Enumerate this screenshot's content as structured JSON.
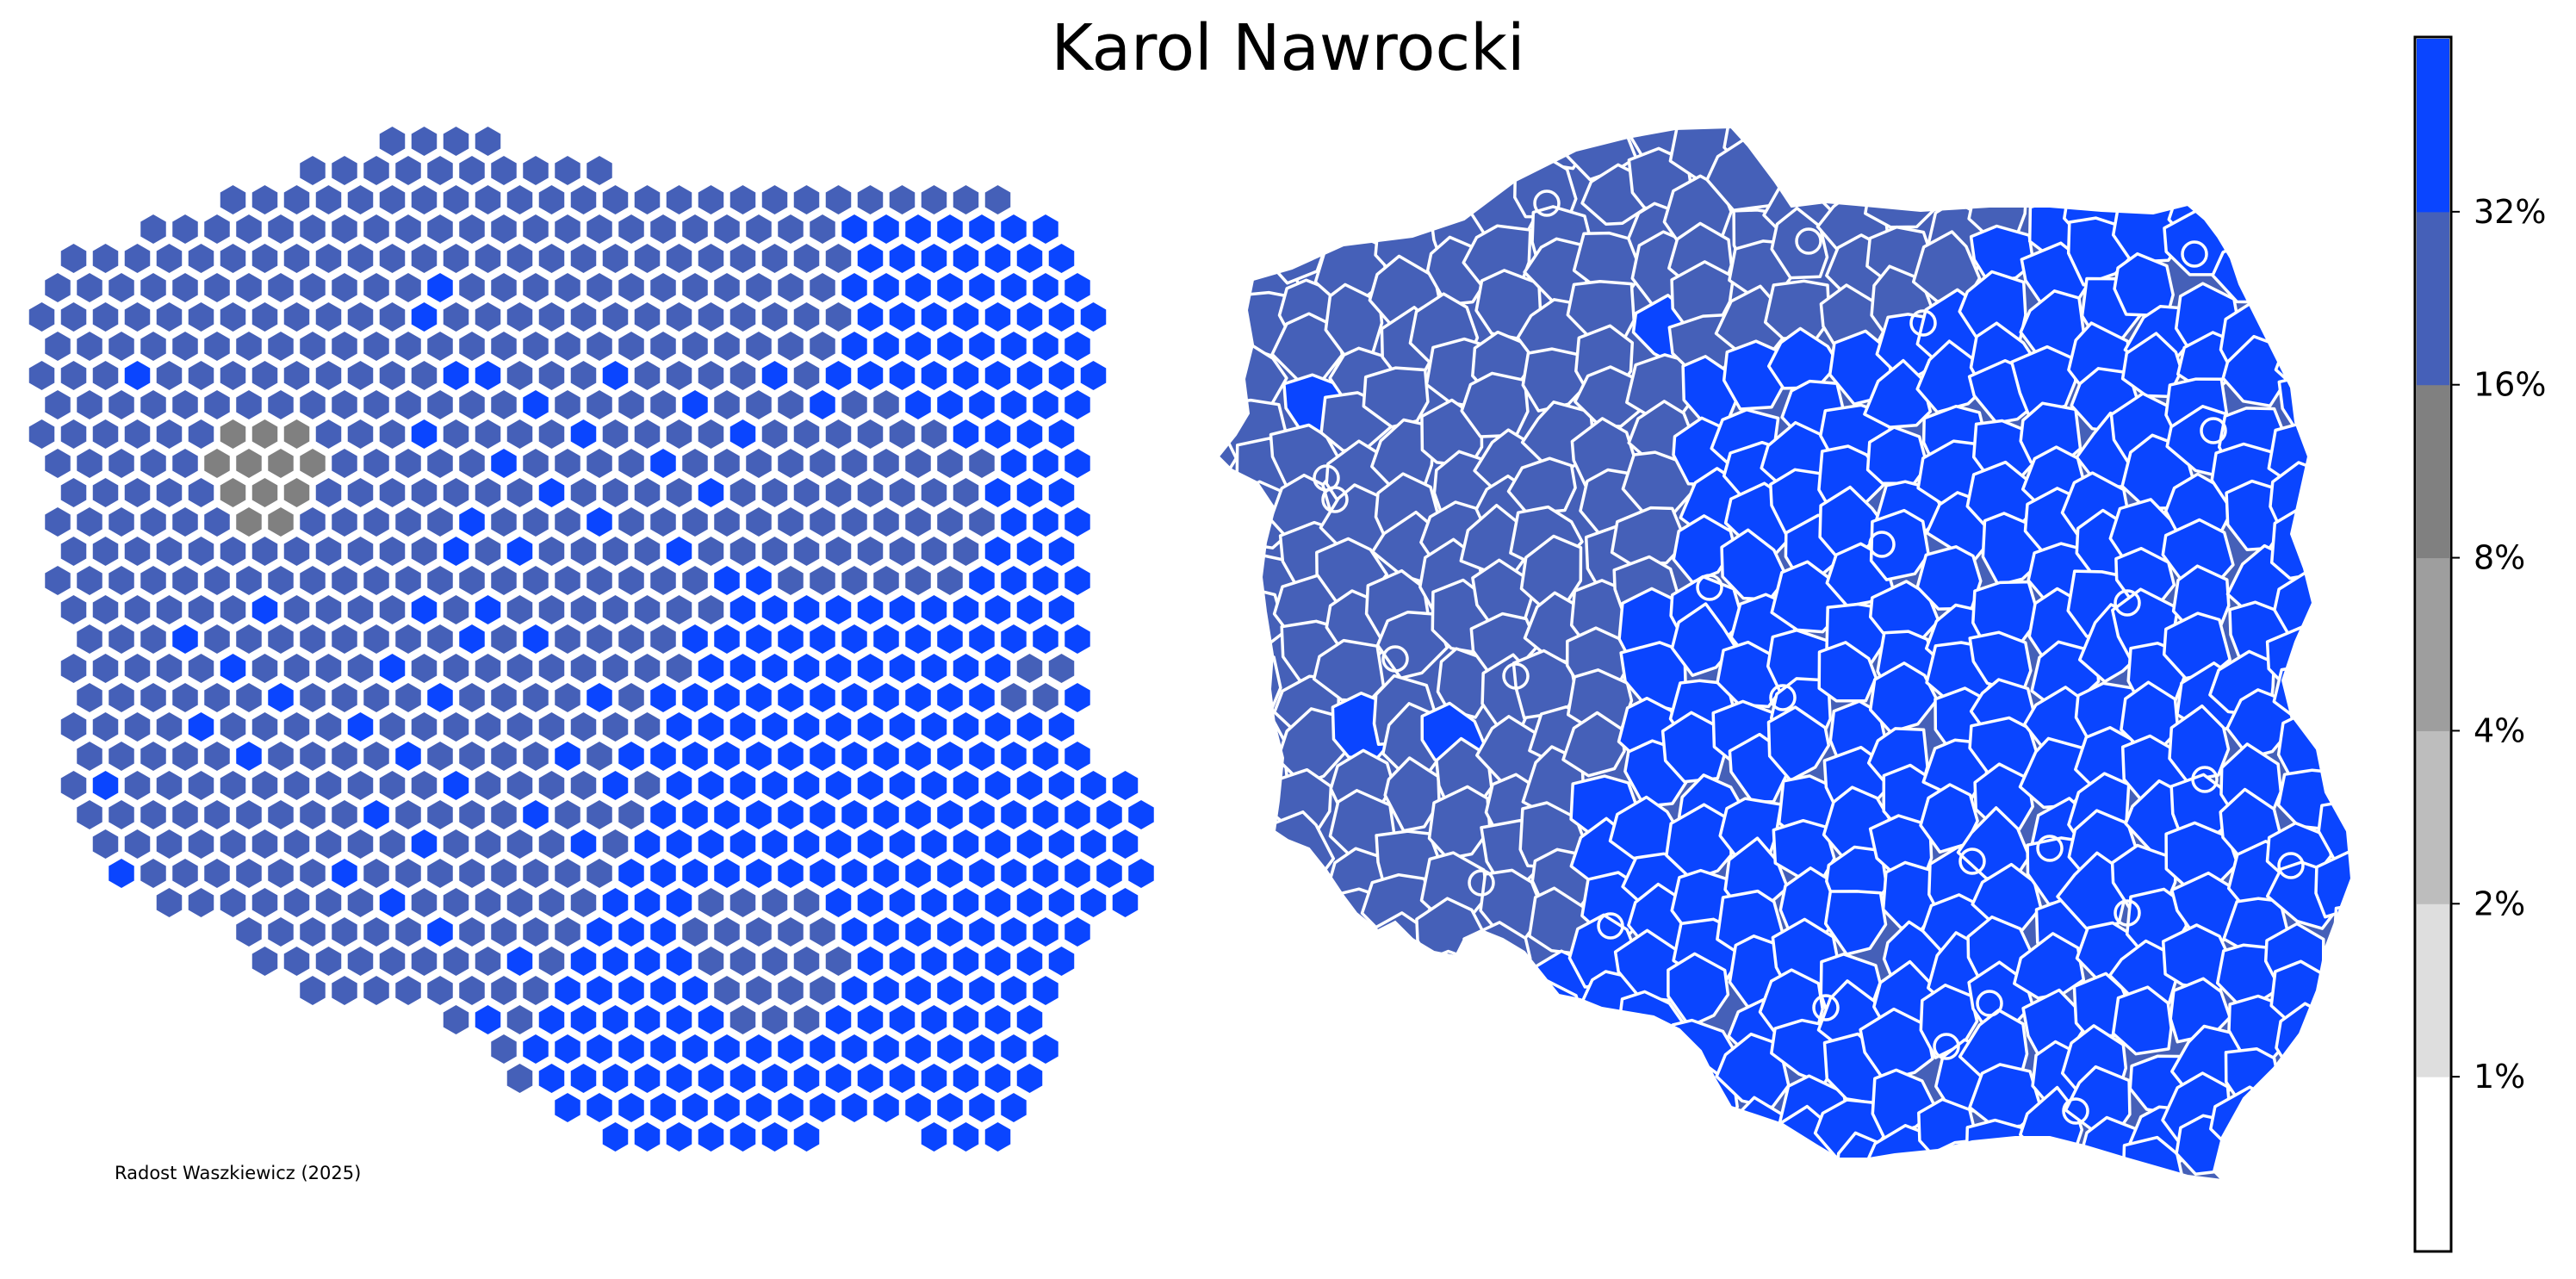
{
  "title": "Karol Nawrocki",
  "credit": "Radost Waszkiewicz (2025)",
  "legend": {
    "ticks": [
      "1%",
      "2%",
      "4%",
      "8%",
      "16%",
      "32%"
    ],
    "bins": [
      {
        "range": "<1%",
        "color": "#ffffff"
      },
      {
        "range": "1–2%",
        "color": "#dedede"
      },
      {
        "range": "2–4%",
        "color": "#bdbdbd"
      },
      {
        "range": "4–8%",
        "color": "#9e9e9e"
      },
      {
        "range": "8–16%",
        "color": "#808080"
      },
      {
        "range": "16–32%",
        "color": "#4560b8"
      },
      {
        "range": ">32%",
        "color": "#0a45ff"
      }
    ]
  },
  "colors": {
    "blue_high": "#0a45ff",
    "blue_mid": "#4560b8",
    "gray": "#808080",
    "border": "#ffffff"
  },
  "maps": {
    "left": "hexagonal cartogram of Polish counties",
    "right": "choropleth of Polish counties"
  }
}
